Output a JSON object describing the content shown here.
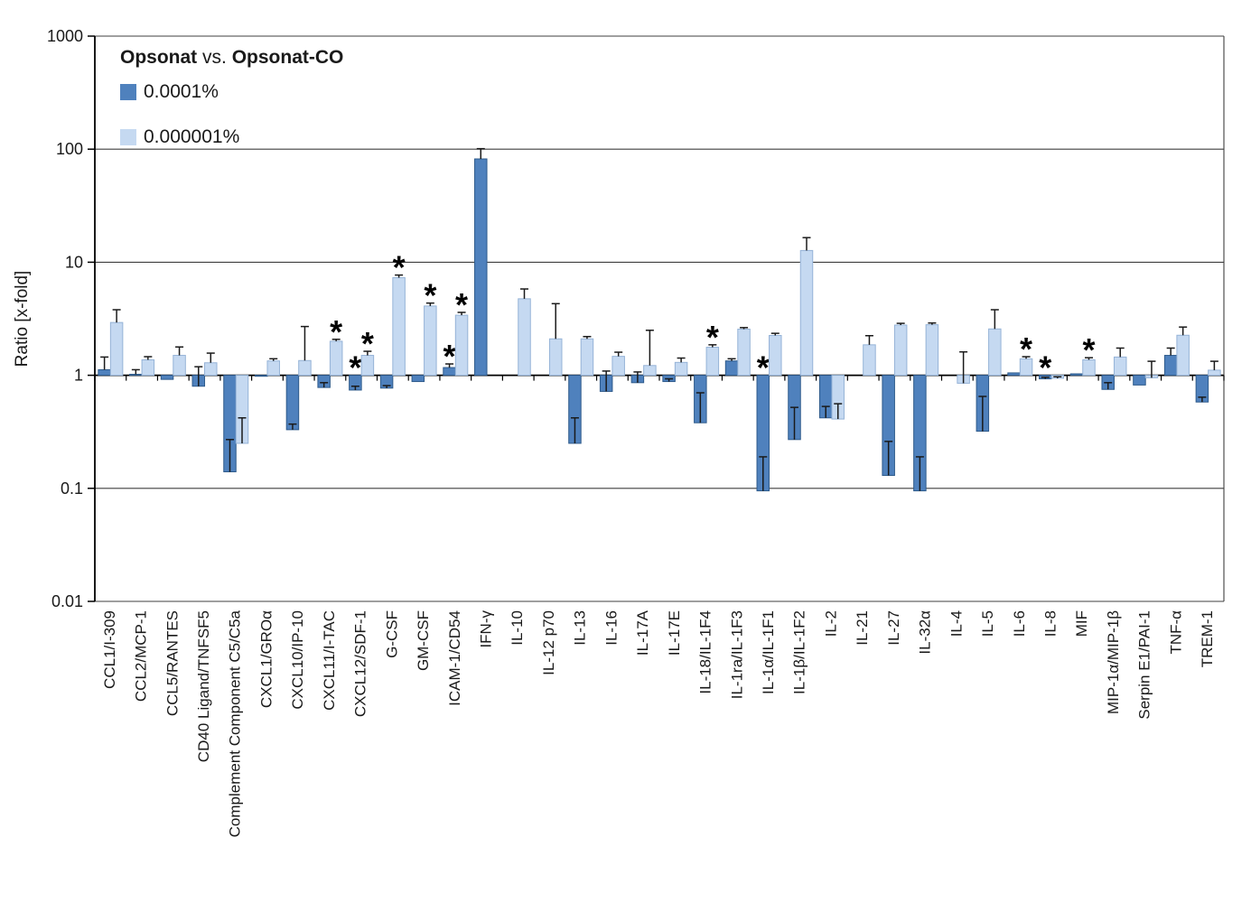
{
  "legend": {
    "title_left": "Opsonat",
    "title_mid": "vs.",
    "title_right": "Opsonat-CO",
    "series_labels": [
      "0.0001%",
      "0.000001%"
    ]
  },
  "axes": {
    "ylabel": "Ratio [x-fold]",
    "ytick_labels": [
      "1000",
      "100",
      "10",
      "1",
      "0.1",
      "0.01"
    ],
    "ytick_values": [
      1000,
      100,
      10,
      1,
      0.1,
      0.01
    ]
  },
  "colors": {
    "dark_fill": "#4F81BD",
    "dark_stroke": "#2E5A8B",
    "light_fill": "#C5D9F1",
    "light_stroke": "#95B3D7",
    "error_bar": "#1a1a1a",
    "grid": "#3f3f3f",
    "axis": "#000000"
  },
  "chart_data": {
    "type": "bar",
    "scale": "log",
    "ylim": [
      0.01,
      1000
    ],
    "ylabel": "Ratio [x-fold]",
    "legend_position": "top-left-inside",
    "grid": "horizontal-decades",
    "categories": [
      "CCL1/I-309",
      "CCL2/MCP-1",
      "CCL5/RANTES",
      "CD40 Ligand/TNFSF5",
      "Complement Component C5/C5a",
      "CXCL1/GROα",
      "CXCL10/IP-10",
      "CXCL11/I-TAC",
      "CXCL12/SDF-1",
      "G-CSF",
      "GM-CSF",
      "ICAM-1/CD54",
      "IFN-γ",
      "IL-10",
      "IL-12 p70",
      "IL-13",
      "IL-16",
      "IL-17A",
      "IL-17E",
      "IL-18/IL-1F4",
      "IL-1ra/IL-1F3",
      "IL-1α/IL-1F1",
      "IL-1β/IL-1F2",
      "IL-2",
      "IL-21",
      "IL-27",
      "IL-32α",
      "IL-4",
      "IL-5",
      "IL-6",
      "IL-8",
      "MIF",
      "MIP-1α/MIP-1β",
      "Serpin E1/PAI-1",
      "TNF-α",
      "TREM-1"
    ],
    "series": [
      {
        "name": "0.0001%",
        "values": [
          1.12,
          1.02,
          0.92,
          0.8,
          0.14,
          0.98,
          0.33,
          0.78,
          0.74,
          0.77,
          0.88,
          1.17,
          82,
          1.0,
          1.0,
          0.25,
          0.72,
          0.86,
          0.88,
          0.38,
          1.34,
          0.095,
          0.27,
          0.42,
          1.0,
          0.13,
          0.095,
          1.0,
          0.32,
          1.05,
          0.93,
          1.03,
          0.75,
          0.82,
          1.5,
          0.58
        ],
        "err_top": [
          1.45,
          1.12,
          null,
          1.19,
          0.27,
          null,
          0.37,
          0.86,
          0.8,
          0.81,
          null,
          1.26,
          101,
          null,
          null,
          0.42,
          1.09,
          1.07,
          0.93,
          0.7,
          1.4,
          0.19,
          0.52,
          0.53,
          null,
          0.26,
          0.19,
          null,
          0.65,
          null,
          0.96,
          null,
          0.86,
          null,
          1.74,
          0.64
        ],
        "sig_indices": [
          8,
          11,
          21,
          30
        ]
      },
      {
        "name": "0.000001%",
        "values": [
          2.93,
          1.37,
          1.5,
          1.29,
          0.25,
          1.34,
          1.35,
          2.0,
          1.5,
          7.3,
          4.1,
          3.4,
          1.0,
          4.75,
          2.1,
          2.1,
          1.47,
          1.22,
          1.3,
          1.77,
          2.56,
          2.25,
          12.7,
          0.41,
          1.86,
          2.78,
          2.8,
          0.85,
          2.57,
          1.4,
          0.94,
          1.37,
          1.45,
          0.95,
          2.26,
          1.11
        ],
        "err_top": [
          3.8,
          1.46,
          1.78,
          1.57,
          0.42,
          1.4,
          2.7,
          2.08,
          1.63,
          7.7,
          4.35,
          3.6,
          null,
          5.8,
          4.3,
          2.2,
          1.6,
          2.5,
          1.42,
          1.86,
          2.64,
          2.35,
          16.5,
          0.56,
          2.24,
          2.88,
          2.9,
          1.61,
          3.8,
          1.46,
          0.97,
          1.43,
          1.74,
          1.33,
          2.67,
          1.33
        ],
        "sig_indices": [
          7,
          8,
          9,
          10,
          11,
          19,
          29,
          31
        ]
      }
    ]
  }
}
